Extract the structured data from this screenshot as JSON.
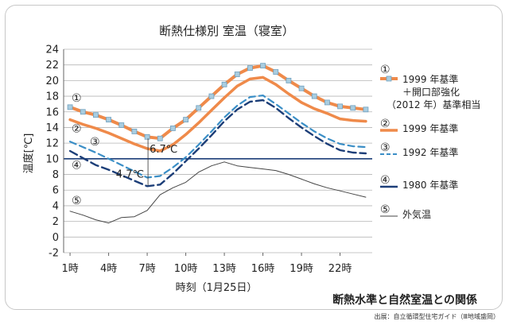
{
  "chart_data": {
    "type": "line",
    "title": "断熱仕様別  室温（寝室）",
    "xlabel": "時刻（1月25日）",
    "ylabel": "温度[℃]",
    "xlim": [
      0.5,
      24.5
    ],
    "ylim": [
      -2,
      24
    ],
    "yticks": [
      24,
      22,
      20,
      18,
      16,
      14,
      12,
      10,
      8,
      6,
      4,
      2,
      0,
      -2
    ],
    "y_highlight": 10,
    "xticks": [
      {
        "x": 1,
        "label": "1時"
      },
      {
        "x": 4,
        "label": "4時"
      },
      {
        "x": 7,
        "label": "7時"
      },
      {
        "x": 10,
        "label": "10時"
      },
      {
        "x": 13,
        "label": "13時"
      },
      {
        "x": 16,
        "label": "16時"
      },
      {
        "x": 19,
        "label": "19時"
      },
      {
        "x": 22,
        "label": "22時"
      }
    ],
    "x": [
      1,
      2,
      3,
      4,
      5,
      6,
      7,
      8,
      9,
      10,
      11,
      12,
      13,
      14,
      15,
      16,
      17,
      18,
      19,
      20,
      21,
      22,
      23,
      24
    ],
    "series": [
      {
        "id": "s1",
        "marker": "①",
        "label_lines": [
          "1999 年基準",
          "＋開口部強化",
          "（2012 年）基準相当"
        ],
        "color": "#ef8a4a",
        "style": "solid-marker",
        "values": [
          16.6,
          16.0,
          15.6,
          15.0,
          14.3,
          13.5,
          12.8,
          12.6,
          13.9,
          15.0,
          16.5,
          18.0,
          19.5,
          20.8,
          21.6,
          21.9,
          21.1,
          20.0,
          19.0,
          18.0,
          17.2,
          16.7,
          16.5,
          16.3
        ]
      },
      {
        "id": "s2",
        "marker": "②",
        "label_lines": [
          "1999 年基準"
        ],
        "color": "#ef8a4a",
        "style": "solid-thick",
        "values": [
          15.0,
          14.4,
          13.9,
          13.3,
          12.6,
          11.9,
          11.3,
          11.0,
          11.8,
          13.1,
          14.6,
          16.2,
          17.8,
          19.3,
          20.2,
          20.4,
          19.5,
          18.3,
          17.2,
          16.4,
          15.8,
          15.1,
          14.9,
          14.8
        ]
      },
      {
        "id": "s3",
        "marker": "③",
        "label_lines": [
          "1992 年基準"
        ],
        "color": "#3a8ec6",
        "style": "dashed",
        "values": [
          12.2,
          11.5,
          10.8,
          10.0,
          9.2,
          8.4,
          7.6,
          7.8,
          8.9,
          10.2,
          11.8,
          13.5,
          15.3,
          16.8,
          17.9,
          18.1,
          17.0,
          15.8,
          14.6,
          13.5,
          12.6,
          11.9,
          11.6,
          11.5
        ]
      },
      {
        "id": "s4",
        "marker": "④",
        "label_lines": [
          "1980 年基準"
        ],
        "color": "#1c3e78",
        "style": "dashed-dark",
        "values": [
          11.0,
          10.1,
          9.2,
          8.6,
          7.9,
          7.2,
          6.5,
          6.7,
          8.1,
          9.7,
          11.3,
          13.0,
          14.8,
          16.3,
          17.3,
          17.5,
          16.5,
          15.2,
          14.0,
          12.9,
          11.9,
          11.1,
          10.8,
          10.7
        ]
      },
      {
        "id": "s5",
        "marker": "⑤",
        "label_lines": [
          "外気温"
        ],
        "color": "#444444",
        "style": "thin",
        "values": [
          3.3,
          2.8,
          2.2,
          1.8,
          2.5,
          2.6,
          3.4,
          5.4,
          6.3,
          7.0,
          8.3,
          9.1,
          9.6,
          9.1,
          8.9,
          8.7,
          8.5,
          8.0,
          7.4,
          6.8,
          6.3,
          5.9,
          5.5,
          5.1
        ]
      }
    ],
    "annotations": [
      {
        "text": "6.7℃",
        "x": 7,
        "y": 12.6
      },
      {
        "text": "4.7℃",
        "x": 7,
        "y": 8.0
      }
    ]
  },
  "footer": {
    "caption": "断熱水準と自然室温との関係",
    "source": "出展：自立循環型住宅ガイド（Ⅲ地域盛岡）"
  }
}
